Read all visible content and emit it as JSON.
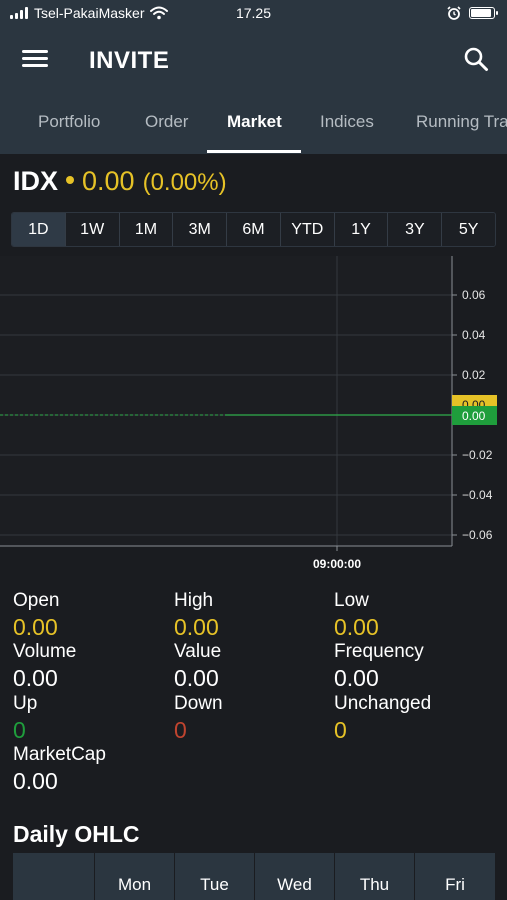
{
  "status_bar": {
    "carrier": "Tsel-PakaiMasker",
    "time": "17.25",
    "battery_level": 0.9
  },
  "header": {
    "title": "INVITE",
    "menu_icon": "hamburger-menu-icon",
    "search_icon": "search-icon"
  },
  "tabs": [
    {
      "label": "Portfolio"
    },
    {
      "label": "Order"
    },
    {
      "label": "Market"
    },
    {
      "label": "Indices"
    },
    {
      "label": "Running Tra"
    }
  ],
  "active_tab": "Market",
  "index": {
    "name": "IDX",
    "price": "0.00",
    "change": "(0.00%)"
  },
  "time_ranges": [
    "1D",
    "1W",
    "1M",
    "3M",
    "6M",
    "YTD",
    "1Y",
    "3Y",
    "5Y"
  ],
  "active_range": "1D",
  "chart_data": {
    "type": "line",
    "y_ticks": [
      "0.06",
      "0.04",
      "0.02",
      "0.00",
      "−0.02",
      "−0.04",
      "−0.06"
    ],
    "ylim": [
      -0.06,
      0.06
    ],
    "x_ticks": [
      "09:00:00"
    ],
    "grid": true,
    "markers": [
      {
        "label": "0.00",
        "value": 0.0,
        "color": "#e6c227"
      },
      {
        "label": "0.00",
        "value": 0.0,
        "color": "#1f9e3c"
      }
    ],
    "series": [
      {
        "values": [
          0.0,
          0.0
        ],
        "color": "#2fae4c"
      }
    ]
  },
  "stats": {
    "open": {
      "label": "Open",
      "value": "0.00"
    },
    "high": {
      "label": "High",
      "value": "0.00"
    },
    "low": {
      "label": "Low",
      "value": "0.00"
    },
    "volume": {
      "label": "Volume",
      "value": "0.00"
    },
    "value": {
      "label": "Value",
      "value": "0.00"
    },
    "frequency": {
      "label": "Frequency",
      "value": "0.00"
    },
    "up": {
      "label": "Up",
      "value": "0"
    },
    "down": {
      "label": "Down",
      "value": "0"
    },
    "unchanged": {
      "label": "Unchanged",
      "value": "0"
    },
    "marketcap": {
      "label": "MarketCap",
      "value": "0.00"
    }
  },
  "colors": {
    "yellow": "#e6c227",
    "green": "#1f9e3c",
    "red": "#c0442f",
    "white": "#ffffff"
  },
  "daily_ohlc": {
    "title": "Daily OHLC",
    "columns": [
      "",
      "Mon",
      "Tue",
      "Wed",
      "Thu",
      "Fri"
    ]
  }
}
